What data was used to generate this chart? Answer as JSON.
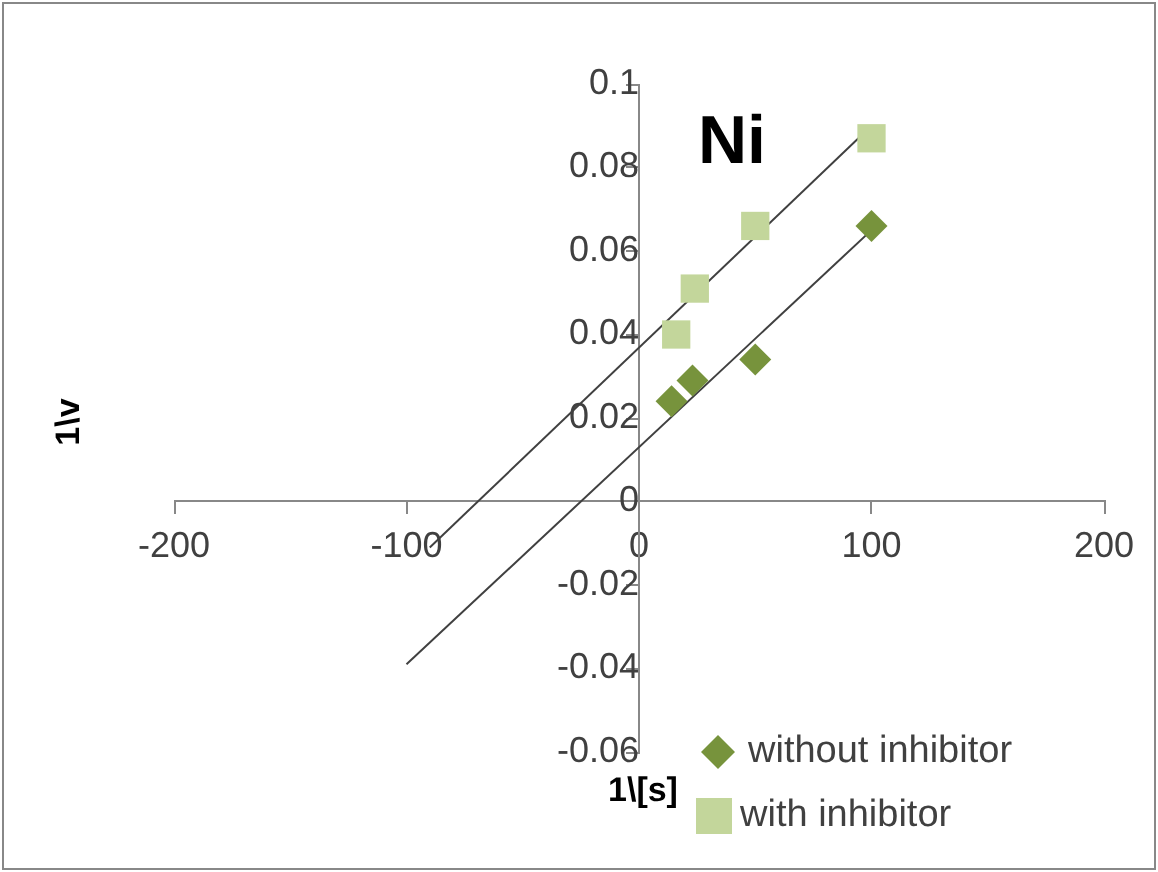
{
  "chart_data": {
    "type": "scatter",
    "title": "Ni",
    "xlabel": "1\\[s]",
    "ylabel": "1\\v",
    "xlim": [
      -200,
      200
    ],
    "xticks": [
      -200,
      -100,
      0,
      100,
      200
    ],
    "ylim": [
      -0.06,
      0.1
    ],
    "yticks": [
      -0.06,
      -0.04,
      -0.02,
      0,
      0.02,
      0.04,
      0.06,
      0.08,
      0.1
    ],
    "grid": false,
    "legend": "bottom right",
    "series": [
      {
        "name": "without inhibitor",
        "color": "#77933c",
        "marker": "diamond",
        "x": [
          14,
          23,
          50,
          100
        ],
        "values": [
          0.024,
          0.029,
          0.034,
          0.066
        ]
      },
      {
        "name": "with inhibitor",
        "color": "#c3d69b",
        "marker": "square",
        "x": [
          16,
          24,
          50,
          100
        ],
        "values": [
          0.04,
          0.051,
          0.066,
          0.087
        ]
      },
      {
        "type": "line",
        "color": "#404040",
        "marker": "none",
        "x": [
          -90,
          100
        ],
        "values": [
          -0.011,
          0.09
        ]
      },
      {
        "type": "line",
        "color": "#404040",
        "marker": "none",
        "x": [
          -100,
          100
        ],
        "values": [
          -0.039,
          0.065
        ]
      }
    ]
  }
}
